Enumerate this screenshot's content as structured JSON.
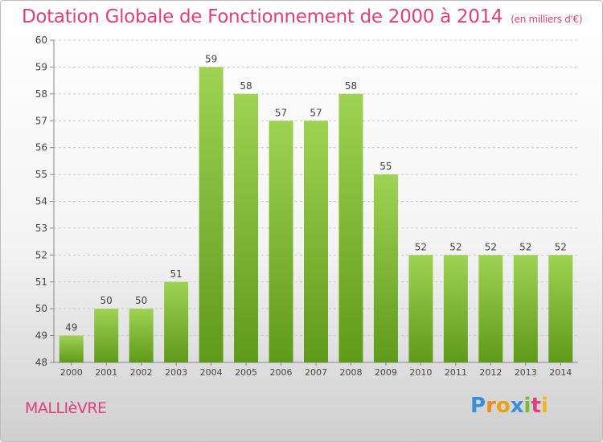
{
  "header": {
    "title": "Dotation Globale de Fonctionnement de 2000 à 2014",
    "unit": "(en milliers d'€)"
  },
  "footer": {
    "town": "MALLIèVRE",
    "logo_text": "Proxiti"
  },
  "colors": {
    "title": "#e0407a",
    "bar_top": "#9fd253",
    "bar_bottom": "#5f9a1a",
    "axis": "#888888",
    "grid": "#cccccc"
  },
  "chart_data": {
    "type": "bar",
    "categories": [
      "2000",
      "2001",
      "2002",
      "2003",
      "2004",
      "2005",
      "2006",
      "2007",
      "2008",
      "2009",
      "2010",
      "2011",
      "2012",
      "2013",
      "2014"
    ],
    "values": [
      49,
      50,
      50,
      51,
      59,
      58,
      57,
      57,
      58,
      55,
      52,
      52,
      52,
      52,
      52
    ],
    "ylim": [
      48,
      60
    ],
    "yticks": [
      48,
      49,
      50,
      51,
      52,
      53,
      54,
      55,
      56,
      57,
      58,
      59,
      60
    ],
    "grid": true,
    "data_labels": true
  }
}
